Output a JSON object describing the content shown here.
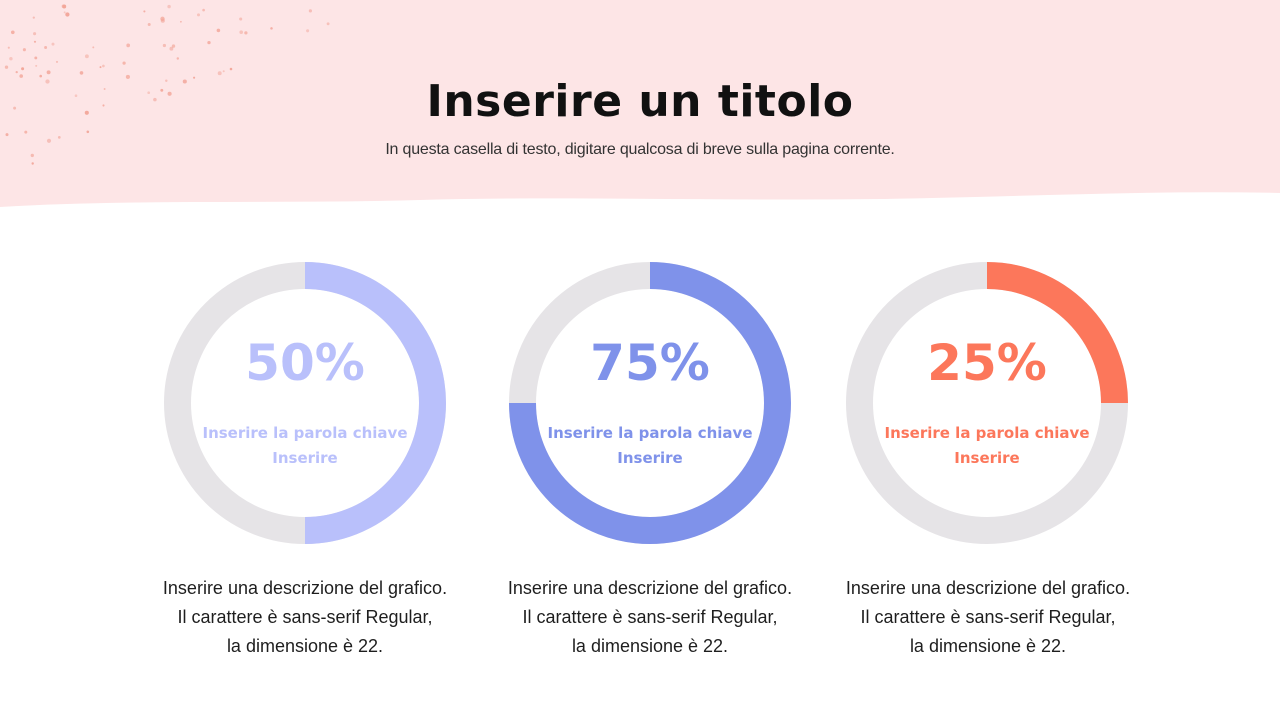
{
  "title": "Inserire un titolo",
  "subtitle": "In questa casella di testo, digitare qualcosa di breve sulla pagina corrente.",
  "colors": {
    "header_band": "#fde5e6",
    "dots": "#f2a497",
    "track": "#e6e4e7"
  },
  "charts": [
    {
      "value": 50,
      "percent_label": "50%",
      "keyword": "Inserire la parola chiave",
      "sub_keyword": "Inserire",
      "color": "#b9c0fb",
      "description": [
        "Inserire una descrizione del grafico.",
        "Il carattere è sans-serif Regular,",
        "la dimensione è 22."
      ]
    },
    {
      "value": 75,
      "percent_label": "75%",
      "keyword": "Inserire la parola chiave",
      "sub_keyword": "Inserire",
      "color": "#7f92ea",
      "description": [
        "Inserire una descrizione del grafico.",
        "Il carattere è sans-serif Regular,",
        "la dimensione è 22."
      ]
    },
    {
      "value": 25,
      "percent_label": "25%",
      "keyword": "Inserire la parola chiave",
      "sub_keyword": "Inserire",
      "color": "#fc775b",
      "description": [
        "Inserire una descrizione del grafico.",
        "Il carattere è sans-serif Regular,",
        "la dimensione è 22."
      ]
    }
  ]
}
